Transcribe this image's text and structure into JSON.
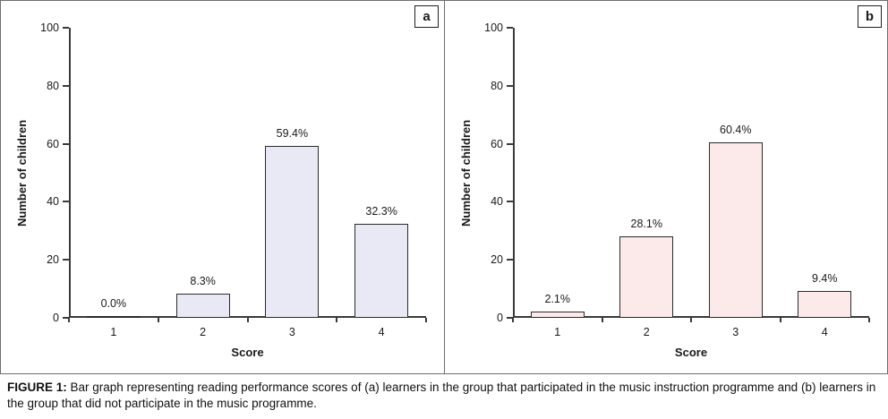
{
  "figure": {
    "caption_prefix": "FIGURE 1:",
    "caption_text": " Bar graph representing reading performance scores of (a) learners in the group that participated in the music instruction programme and (b) learners in the group that did not participate in the music programme."
  },
  "chart_data": [
    {
      "type": "bar",
      "panel_label": "a",
      "title": "",
      "categories": [
        "1",
        "2",
        "3",
        "4"
      ],
      "values": [
        0.0,
        8.3,
        59.4,
        32.3
      ],
      "value_labels": [
        "0.0%",
        "8.3%",
        "59.4%",
        "32.3%"
      ],
      "xlabel": "Score",
      "ylabel": "Number of children",
      "ylim": [
        0,
        100
      ],
      "yticks": [
        0,
        20,
        40,
        60,
        80,
        100
      ],
      "grid": false,
      "legend": "none",
      "bar_fill": "#e9e8f5",
      "bar_border": "#2b2b2b"
    },
    {
      "type": "bar",
      "panel_label": "b",
      "title": "",
      "categories": [
        "1",
        "2",
        "3",
        "4"
      ],
      "values": [
        2.1,
        28.1,
        60.4,
        9.4
      ],
      "value_labels": [
        "2.1%",
        "28.1%",
        "60.4%",
        "9.4%"
      ],
      "xlabel": "Score",
      "ylabel": "Number of children",
      "ylim": [
        0,
        100
      ],
      "yticks": [
        0,
        20,
        40,
        60,
        80,
        100
      ],
      "grid": false,
      "legend": "none",
      "bar_fill": "#fce9e9",
      "bar_border": "#2b2b2b"
    }
  ]
}
